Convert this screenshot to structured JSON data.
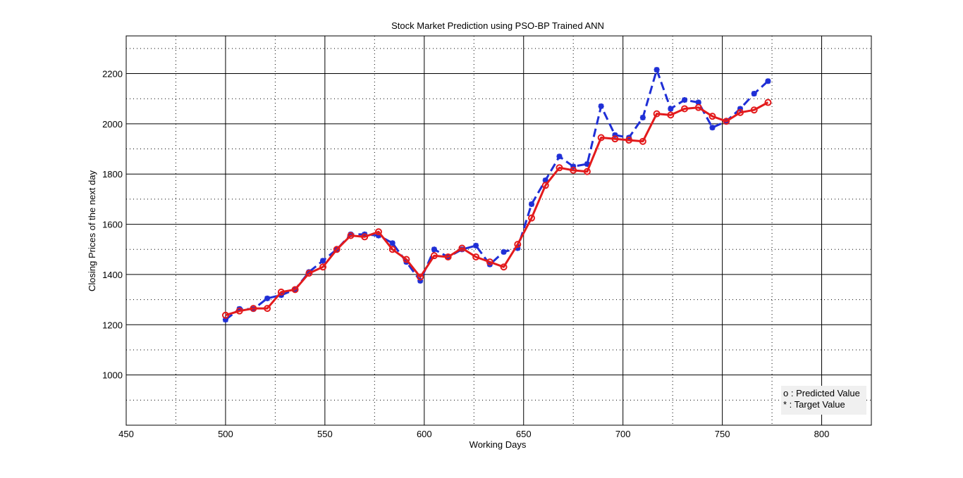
{
  "colors": {
    "predicted": "#e31a1c",
    "target": "#1f2fd6",
    "grid_major": "#000000",
    "grid_minor": "#000000",
    "legend_bg": "#f0f0f0"
  },
  "chart_data": {
    "type": "line",
    "title": "Stock Market Prediction using PSO-BP Trained ANN",
    "xlabel": "Working Days",
    "ylabel": "Closing Prices of the next day",
    "xlim": [
      450,
      825
    ],
    "ylim": [
      800,
      2350
    ],
    "xticks": [
      450,
      500,
      550,
      600,
      650,
      700,
      750,
      800
    ],
    "yticks": [
      1000,
      1200,
      1400,
      1600,
      1800,
      2000,
      2200
    ],
    "grid": true,
    "legend_placement": "bottom-right",
    "legend": [
      "o : Predicted Value",
      "* : Target Value"
    ],
    "series": [
      {
        "name": "o : Predicted Value",
        "marker": "circle",
        "style": "solid",
        "x": [
          500,
          507,
          514,
          521,
          528,
          535,
          542,
          549,
          556,
          563,
          570,
          577,
          584,
          591,
          598,
          605,
          612,
          619,
          626,
          633,
          640,
          647,
          654,
          661,
          668,
          675,
          682,
          689,
          696,
          703,
          710,
          717,
          724,
          731,
          738,
          745,
          752,
          759,
          766,
          773
        ],
        "y": [
          1238,
          1255,
          1265,
          1265,
          1330,
          1340,
          1405,
          1430,
          1500,
          1555,
          1550,
          1570,
          1500,
          1460,
          1390,
          1475,
          1470,
          1505,
          1470,
          1450,
          1430,
          1520,
          1625,
          1755,
          1825,
          1815,
          1810,
          1945,
          1940,
          1935,
          1930,
          2040,
          2035,
          2060,
          2065,
          2030,
          2010,
          2045,
          2055,
          2085
        ]
      },
      {
        "name": "* : Target Value",
        "marker": "star",
        "style": "dashed",
        "x": [
          500,
          507,
          514,
          521,
          528,
          535,
          542,
          549,
          556,
          563,
          570,
          577,
          584,
          591,
          598,
          605,
          612,
          619,
          626,
          633,
          640,
          647,
          654,
          661,
          668,
          675,
          682,
          689,
          696,
          703,
          710,
          717,
          724,
          731,
          738,
          745,
          752,
          759,
          766,
          773
        ],
        "y": [
          1220,
          1263,
          1262,
          1305,
          1318,
          1340,
          1410,
          1455,
          1500,
          1560,
          1560,
          1555,
          1525,
          1450,
          1375,
          1500,
          1470,
          1500,
          1515,
          1440,
          1490,
          1505,
          1680,
          1775,
          1870,
          1830,
          1840,
          2070,
          1955,
          1945,
          2025,
          2215,
          2060,
          2095,
          2085,
          1985,
          2010,
          2060,
          2120,
          2170
        ]
      }
    ]
  }
}
